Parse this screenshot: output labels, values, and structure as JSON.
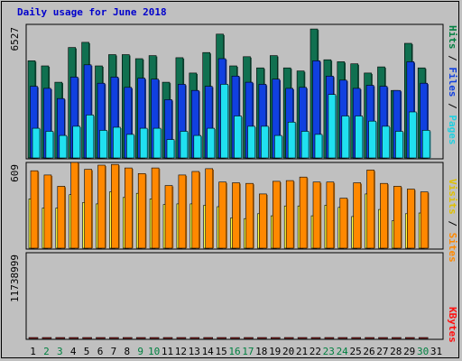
{
  "title": "Daily usage for June 2018",
  "colors": {
    "hits": "#107050",
    "files": "#1040e0",
    "pages": "#20e0f0",
    "visits": "#ffff40",
    "sites": "#ff8800",
    "kbytes": "#ff1010",
    "weekday_label": "#000000",
    "weekend_label": "#008040"
  },
  "chart_data": [
    {
      "type": "bar",
      "title": "Daily usage for June 2018",
      "categories": [
        "1",
        "2",
        "3",
        "4",
        "5",
        "6",
        "7",
        "8",
        "9",
        "10",
        "11",
        "12",
        "13",
        "14",
        "15",
        "16",
        "17",
        "18",
        "19",
        "20",
        "21",
        "22",
        "23",
        "24",
        "25",
        "26",
        "27",
        "28",
        "29",
        "30",
        "31"
      ],
      "weekend_days": [
        "2",
        "3",
        "9",
        "10",
        "16",
        "17",
        "23",
        "24",
        "30"
      ],
      "max_label": "6527",
      "ylim": [
        0,
        6527
      ],
      "series": [
        {
          "name": "Hits",
          "color": "#107050",
          "values": [
            4750,
            4500,
            3700,
            5400,
            5650,
            4500,
            5050,
            5050,
            4850,
            5000,
            3700,
            4900,
            4150,
            5150,
            6050,
            4500,
            4950,
            4400,
            5000,
            4400,
            4250,
            6300,
            4800,
            4700,
            4600,
            4150,
            4450,
            3300,
            5600,
            4400,
            null
          ]
        },
        {
          "name": "Files",
          "color": "#1040e0",
          "values": [
            3500,
            3400,
            2900,
            3950,
            4550,
            3650,
            3950,
            3450,
            3900,
            3850,
            2850,
            3600,
            3300,
            3500,
            4850,
            4000,
            3700,
            3600,
            3850,
            3400,
            3450,
            4750,
            4000,
            3800,
            3400,
            3550,
            3500,
            3300,
            4700,
            3650,
            null
          ]
        },
        {
          "name": "Pages",
          "color": "#20e0f0",
          "values": [
            1450,
            1300,
            1100,
            1550,
            2100,
            1350,
            1500,
            1150,
            1450,
            1450,
            900,
            1300,
            1100,
            1450,
            3600,
            2050,
            1550,
            1550,
            1100,
            1750,
            1300,
            1150,
            3100,
            2050,
            2050,
            1800,
            1550,
            1300,
            2250,
            1350,
            null
          ]
        }
      ],
      "legend": "right-vertical"
    },
    {
      "type": "bar",
      "max_label": "609",
      "ylim": [
        0,
        609
      ],
      "series": [
        {
          "name": "Visits",
          "color": "#ffff40",
          "values": [
            350,
            285,
            285,
            380,
            325,
            315,
            400,
            360,
            390,
            350,
            310,
            315,
            315,
            305,
            295,
            215,
            210,
            245,
            230,
            300,
            300,
            230,
            305,
            290,
            225,
            385,
            275,
            195,
            245,
            250,
            null
          ]
        },
        {
          "name": "Sites",
          "color": "#ff8800",
          "values": [
            550,
            520,
            440,
            609,
            560,
            590,
            595,
            570,
            530,
            570,
            445,
            520,
            545,
            565,
            470,
            465,
            460,
            385,
            475,
            480,
            505,
            470,
            470,
            355,
            465,
            555,
            460,
            440,
            420,
            400,
            null
          ]
        }
      ],
      "legend": "right-vertical"
    },
    {
      "type": "bar",
      "max_label": "11738999",
      "ylim": [
        0,
        11738999
      ],
      "series": [
        {
          "name": "KBytes",
          "color": "#ff1010",
          "values": [
            1650,
            1100,
            1450,
            3250,
            1400,
            5100,
            3200,
            3100,
            3200,
            3150,
            1150,
            1550,
            1200,
            3350,
            1250,
            4500,
            2600,
            6700,
            2150,
            3150,
            3400,
            8650,
            3100,
            3250,
            2800,
            8500,
            8500,
            1100,
            6650,
            10300,
            null
          ]
        }
      ],
      "legend": "right-vertical"
    }
  ],
  "legend_labels": {
    "pages": "Pages",
    "sep1": " / ",
    "files": "Files",
    "sep2": " / ",
    "hits": "Hits",
    "sites": "Sites",
    "sep3": " / ",
    "visits": "Visits",
    "kbytes": "KBytes"
  }
}
